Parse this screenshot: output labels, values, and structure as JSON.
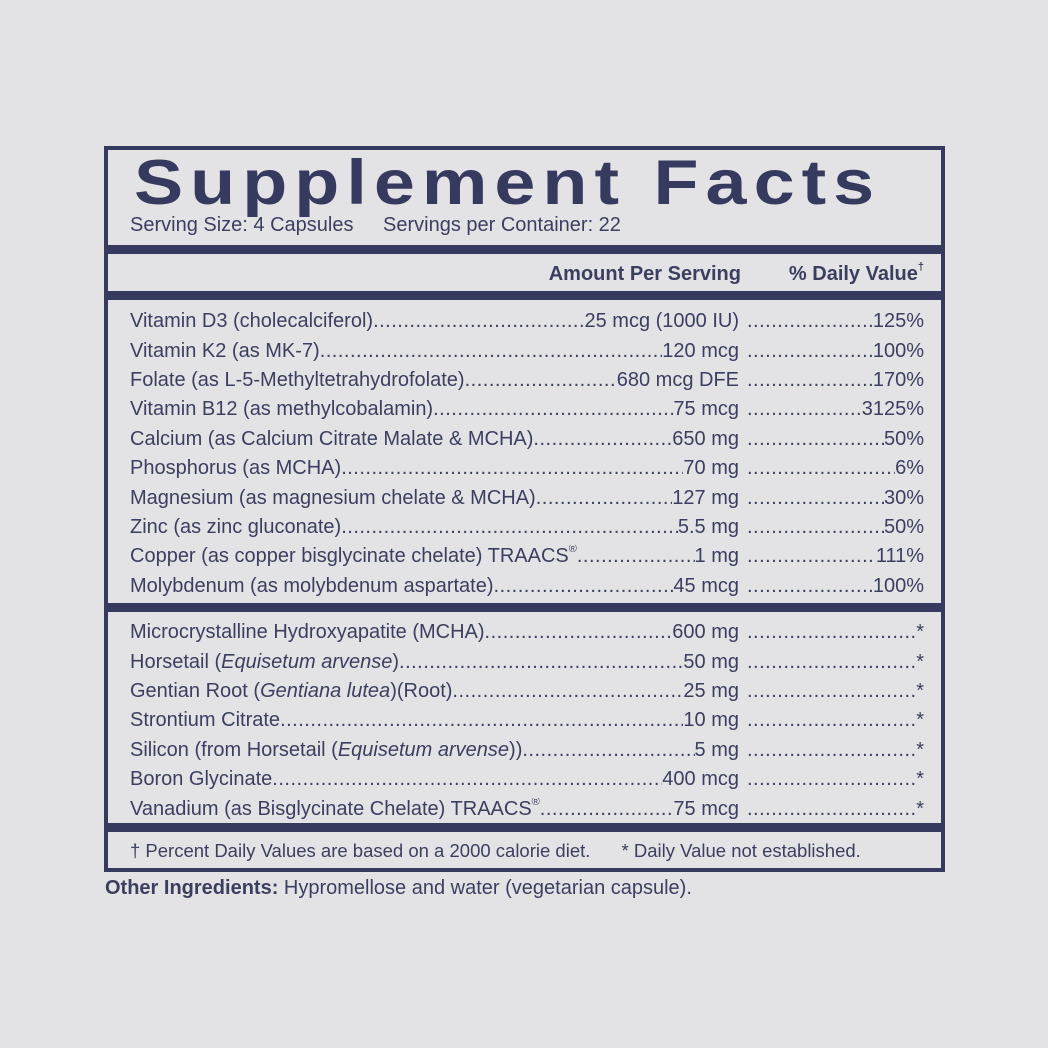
{
  "title": "Supplement Facts",
  "serving_size": "Serving Size: 4 Capsules",
  "servings_per_container": "Servings per Container: 22",
  "header": {
    "amount": "Amount Per Serving",
    "daily_value": "% Daily Value",
    "daily_value_mark": "†"
  },
  "section1": [
    {
      "name": [
        {
          "t": "Vitamin D3 (cholecalciferol)"
        }
      ],
      "amount": "25 mcg (1000 IU)",
      "dv": "125%"
    },
    {
      "name": [
        {
          "t": "Vitamin K2 (as MK-7) "
        }
      ],
      "amount": "120 mcg",
      "dv": "100%"
    },
    {
      "name": [
        {
          "t": "Folate (as L-5-Methyltetrahydrofolate) "
        }
      ],
      "amount": "680 mcg DFE",
      "dv": "170%"
    },
    {
      "name": [
        {
          "t": "Vitamin B12 (as methylcobalamin)"
        }
      ],
      "amount": "75 mcg",
      "dv": "3125%"
    },
    {
      "name": [
        {
          "t": "Calcium (as Calcium Citrate Malate & MCHA)"
        }
      ],
      "amount": "650 mg",
      "dv": "50%"
    },
    {
      "name": [
        {
          "t": "Phosphorus (as MCHA)"
        }
      ],
      "amount": "70 mg",
      "dv": "6%"
    },
    {
      "name": [
        {
          "t": "Magnesium (as magnesium chelate & MCHA)"
        }
      ],
      "amount": "127 mg",
      "dv": "30%"
    },
    {
      "name": [
        {
          "t": "Zinc (as zinc gluconate)"
        }
      ],
      "amount": "5.5 mg",
      "dv": "50%"
    },
    {
      "name": [
        {
          "t": "Copper (as copper bisglycinate chelate) TRAACS"
        },
        {
          "t": "®",
          "sup": true
        }
      ],
      "amount": "1 mg",
      "dv": "111%"
    },
    {
      "name": [
        {
          "t": "Molybdenum (as molybdenum aspartate) "
        }
      ],
      "amount": "45 mcg",
      "dv": "100%"
    }
  ],
  "section2": [
    {
      "name": [
        {
          "t": "Microcrystalline Hydroxyapatite (MCHA)"
        }
      ],
      "amount": "600 mg",
      "dv": "*"
    },
    {
      "name": [
        {
          "t": "Horsetail ("
        },
        {
          "t": "Equisetum arvense",
          "i": true
        },
        {
          "t": ") "
        }
      ],
      "amount": "50 mg",
      "dv": "*"
    },
    {
      "name": [
        {
          "t": "Gentian Root ("
        },
        {
          "t": "Gentiana lutea",
          "i": true
        },
        {
          "t": ")(Root)"
        }
      ],
      "amount": "25 mg",
      "dv": "*"
    },
    {
      "name": [
        {
          "t": "Strontium Citrate"
        }
      ],
      "amount": "10 mg",
      "dv": "*"
    },
    {
      "name": [
        {
          "t": "Silicon (from Horsetail ("
        },
        {
          "t": "Equisetum arvense",
          "i": true
        },
        {
          "t": ")) "
        }
      ],
      "amount": "5 mg",
      "dv": "*"
    },
    {
      "name": [
        {
          "t": "Boron Glycinate "
        }
      ],
      "amount": "400 mcg",
      "dv": "*"
    },
    {
      "name": [
        {
          "t": "Vanadium (as Bisglycinate Chelate) TRAACS"
        },
        {
          "t": "®",
          "sup": true
        }
      ],
      "amount": "75 mcg",
      "dv": "*"
    }
  ],
  "footnote_dv": "† Percent Daily Values are based on a 2000 calorie diet.",
  "footnote_star": "* Daily Value not established.",
  "other_ingredients": {
    "label": "Other Ingredients:",
    "value": " Hypromellose and water (vegetarian capsule)."
  },
  "colors": {
    "navy": "#363a5f",
    "text": "#3b3f5f",
    "background": "#e3e3e5"
  }
}
